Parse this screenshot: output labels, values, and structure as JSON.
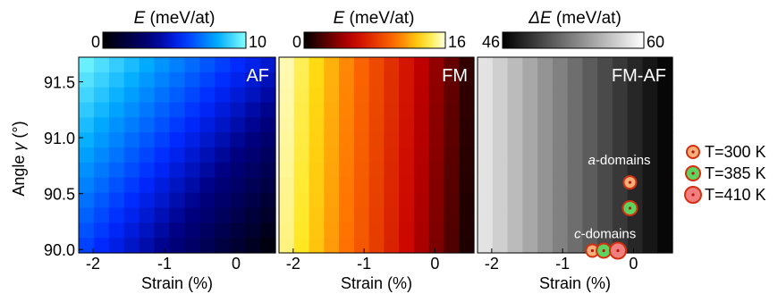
{
  "chart_data": [
    {
      "type": "heatmap",
      "title": "AF",
      "colorbar": {
        "label_symbol": "E",
        "label_unit": " (meV/at)",
        "min": 0,
        "max": 10,
        "min_label": "0",
        "max_label": "10",
        "colormap": "blue"
      },
      "xlabel": "Strain (%)",
      "ylabel_prefix": "Angle ",
      "ylabel_symbol": "γ",
      "ylabel_suffix": " (°)",
      "xlim": [
        -2.2,
        0.55
      ],
      "ylim": [
        89.97,
        91.72
      ],
      "x_ticks": [
        {
          "v": -2,
          "label": "-2"
        },
        {
          "v": -1,
          "label": "-1"
        },
        {
          "v": 0,
          "label": "0"
        }
      ],
      "y_ticks": [
        {
          "v": 91.5,
          "label": "91.5"
        },
        {
          "v": 91.0,
          "label": "91.0"
        },
        {
          "v": 90.5,
          "label": "90.5"
        },
        {
          "v": 90.0,
          "label": "90.0"
        }
      ],
      "grid": {
        "nx": 13,
        "ny": 13
      },
      "z_model": "z = 9.8 at strain -2.2, angle 91.72; decreasing toward 0 at strain 0.55, angle 89.97"
    },
    {
      "type": "heatmap",
      "title": "FM",
      "colorbar": {
        "label_symbol": "E",
        "label_unit": " (meV/at)",
        "min": 0,
        "max": 16,
        "min_label": "0",
        "max_label": "16",
        "colormap": "hot"
      },
      "xlabel": "Strain (%)",
      "xlim": [
        -2.2,
        0.55
      ],
      "ylim": [
        89.97,
        91.72
      ],
      "x_ticks": [
        {
          "v": -2,
          "label": "-2"
        },
        {
          "v": -1,
          "label": "-1"
        },
        {
          "v": 0,
          "label": "0"
        }
      ],
      "grid": {
        "nx": 13,
        "ny": 13
      },
      "z_model": "z ≈ 15.5 at strain -2.2 decreasing to ≈ 0 at strain 0.55, slightly higher at larger angle"
    },
    {
      "type": "heatmap",
      "title": "FM-AF",
      "colorbar": {
        "label_symbol": "ΔE",
        "label_unit": " (meV/at)",
        "min": 46,
        "max": 60,
        "min_label": "46",
        "max_label": "60",
        "colormap": "gray"
      },
      "xlabel": "Strain (%)",
      "xlim": [
        -2.2,
        0.55
      ],
      "ylim": [
        89.97,
        91.72
      ],
      "x_ticks": [
        {
          "v": -2,
          "label": "-2"
        },
        {
          "v": -1,
          "label": "-1"
        },
        {
          "v": 0,
          "label": "0"
        }
      ],
      "grid": {
        "nx": 13,
        "ny": 13
      },
      "z_model": "z ≈ 58 at strain -2.2 decreasing to ≈ 46 at strain 0.55",
      "annotations": [
        {
          "text": "a-domains",
          "italic_part": "a",
          "rest": "-domains",
          "x": -0.2,
          "y": 90.76
        },
        {
          "text": "c-domains",
          "italic_part": "c",
          "rest": "-domains",
          "x": -0.4,
          "y": 90.1
        }
      ],
      "points": [
        {
          "series": "T=300 K",
          "x": -0.05,
          "y": 90.6
        },
        {
          "series": "T=385 K",
          "x": -0.05,
          "y": 90.37
        },
        {
          "series": "T=300 K",
          "x": -0.58,
          "y": 89.99
        },
        {
          "series": "T=385 K",
          "x": -0.42,
          "y": 89.99
        },
        {
          "series": "T=410 K",
          "x": -0.22,
          "y": 89.99
        }
      ]
    }
  ],
  "legend": {
    "position": "right",
    "items": [
      {
        "label": "T=300 K",
        "fill": "#f5b07a",
        "stroke": "#d43010",
        "dot": "#c01010",
        "r": 7
      },
      {
        "label": "T=385 K",
        "fill": "#5fd35f",
        "stroke": "#d43010",
        "dot": "#c01010",
        "r": 8
      },
      {
        "label": "T=410 K",
        "fill": "#f08080",
        "stroke": "#d43010",
        "dot": "#c01010",
        "r": 9
      }
    ]
  }
}
